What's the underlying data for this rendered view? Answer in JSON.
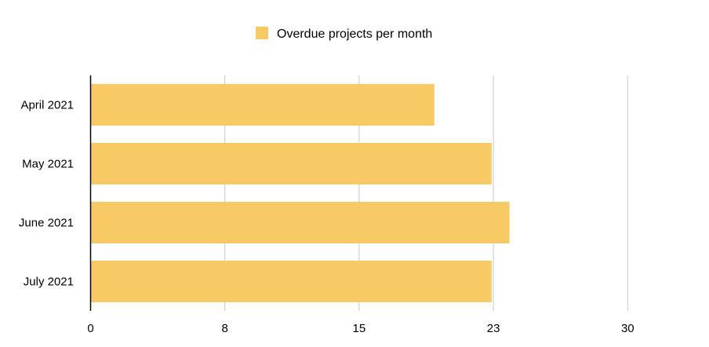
{
  "chart_data": {
    "type": "bar",
    "orientation": "horizontal",
    "categories": [
      "April 2021",
      "May 2021",
      "June 2021",
      "July 2021"
    ],
    "series": [
      {
        "name": "Overdue projects per month",
        "values": [
          19.2,
          22.4,
          23.4,
          22.4
        ],
        "color": "#F8CA66"
      }
    ],
    "x_ticks": [
      "0",
      "8",
      "15",
      "23",
      "30"
    ],
    "xlim": [
      0,
      32
    ],
    "grid": true,
    "legend_position": "top-center",
    "title": "",
    "xlabel": "",
    "ylabel": "",
    "colors": {
      "bar": "#F8CA66",
      "grid": "#C8C8C8",
      "axis": "#000000"
    }
  }
}
